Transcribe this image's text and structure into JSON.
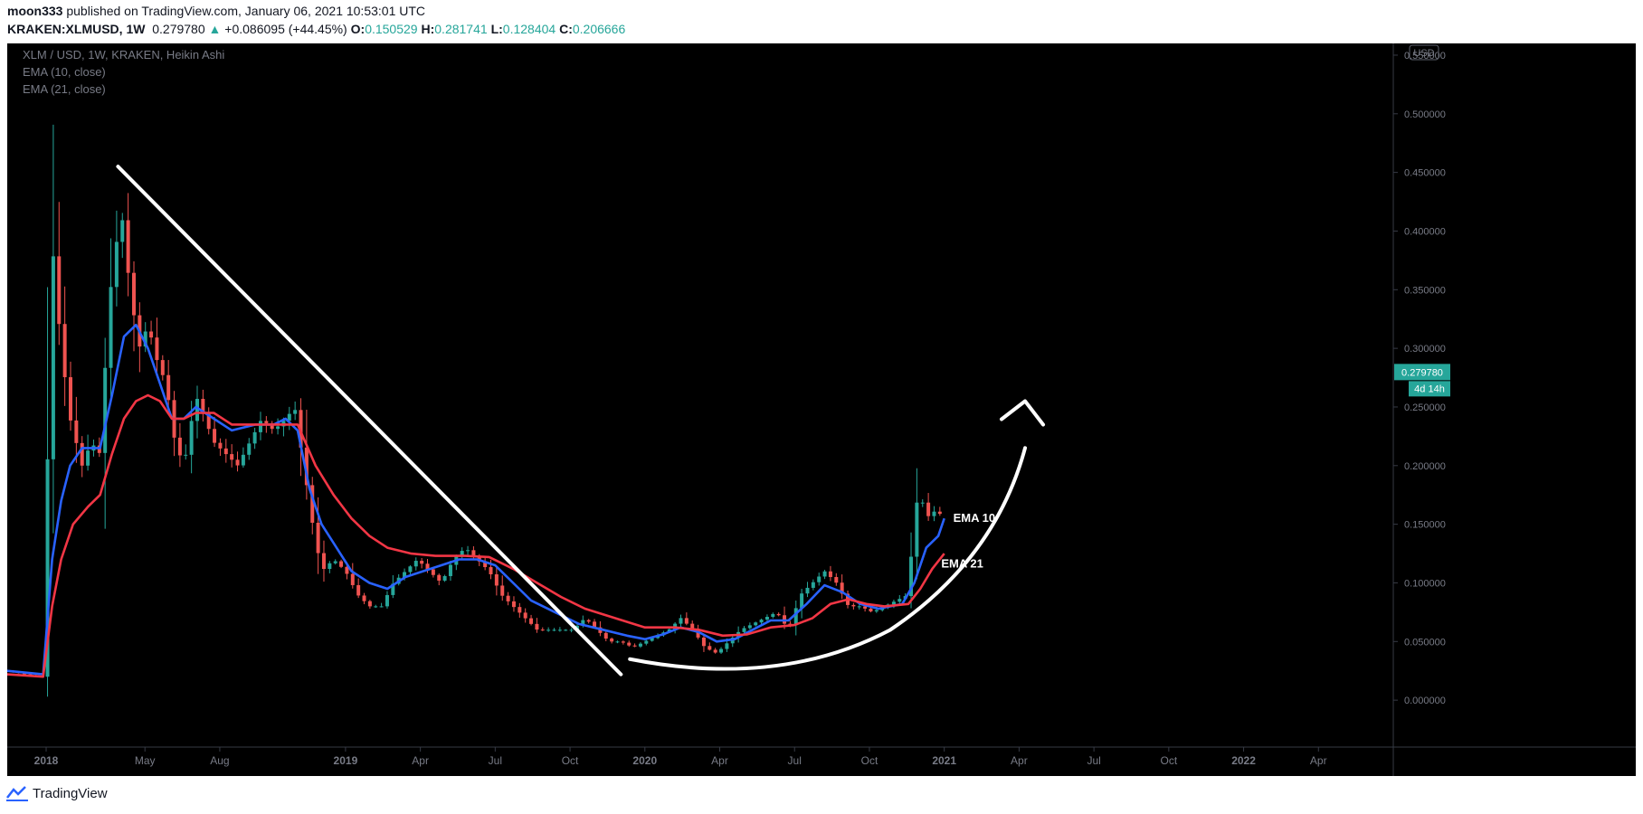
{
  "header": {
    "author": "moon333",
    "published": "published on TradingView.com, January 06, 2021 10:53:01 UTC",
    "symbol": "KRAKEN:XLMUSD, 1W",
    "last": "0.279780",
    "change": "+0.086095 (+44.45%)",
    "o_label": "O:",
    "o_value": "0.150529",
    "h_label": "H:",
    "h_value": "0.281741",
    "l_label": "L:",
    "l_value": "0.128404",
    "c_label": "C:",
    "c_value": "0.206666"
  },
  "legend": {
    "title": "XLM / USD, 1W, KRAKEN, Heikin Ashi",
    "ema10": "EMA (10, close)",
    "ema21": "EMA (21, close)"
  },
  "footer": {
    "brand": "TradingView"
  },
  "chart_data": {
    "type": "candlestick",
    "currency": "USD",
    "price_badge": "0.279780",
    "countdown_badge": "4d 14h",
    "y_ticks": [
      "0.550000",
      "0.500000",
      "0.450000",
      "0.400000",
      "0.350000",
      "0.300000",
      "0.250000",
      "0.200000",
      "0.150000",
      "0.100000",
      "0.050000",
      "0.000000"
    ],
    "ylim": [
      -0.04,
      0.56
    ],
    "x_ticks": [
      {
        "label": "2018",
        "x": 2018.0,
        "bold": true
      },
      {
        "label": "May",
        "x": 2018.33
      },
      {
        "label": "Aug",
        "x": 2018.58
      },
      {
        "label": "2019",
        "x": 2019.0,
        "bold": true
      },
      {
        "label": "Apr",
        "x": 2019.25
      },
      {
        "label": "Jul",
        "x": 2019.5
      },
      {
        "label": "Oct",
        "x": 2019.75
      },
      {
        "label": "2020",
        "x": 2020.0,
        "bold": true
      },
      {
        "label": "Apr",
        "x": 2020.25
      },
      {
        "label": "Jul",
        "x": 2020.5
      },
      {
        "label": "Oct",
        "x": 2020.75
      },
      {
        "label": "2021",
        "x": 2021.0,
        "bold": true
      },
      {
        "label": "Apr",
        "x": 2021.25
      },
      {
        "label": "Jul",
        "x": 2021.5
      },
      {
        "label": "Oct",
        "x": 2021.75
      },
      {
        "label": "2022",
        "x": 2022.0,
        "bold": true
      },
      {
        "label": "Apr",
        "x": 2022.25
      }
    ],
    "xlim": [
      2017.87,
      2022.5
    ],
    "close_path": [
      [
        2017.87,
        0.025
      ],
      [
        2017.97,
        0.02
      ],
      [
        2017.995,
        0.02
      ],
      [
        2018.0,
        0.15
      ],
      [
        2018.02,
        0.39
      ],
      [
        2018.05,
        0.3
      ],
      [
        2018.08,
        0.24
      ],
      [
        2018.12,
        0.2
      ],
      [
        2018.15,
        0.22
      ],
      [
        2018.18,
        0.21
      ],
      [
        2018.21,
        0.34
      ],
      [
        2018.25,
        0.42
      ],
      [
        2018.28,
        0.35
      ],
      [
        2018.31,
        0.3
      ],
      [
        2018.34,
        0.32
      ],
      [
        2018.37,
        0.29
      ],
      [
        2018.4,
        0.27
      ],
      [
        2018.43,
        0.22
      ],
      [
        2018.46,
        0.2
      ],
      [
        2018.5,
        0.26
      ],
      [
        2018.53,
        0.24
      ],
      [
        2018.56,
        0.22
      ],
      [
        2018.6,
        0.21
      ],
      [
        2018.64,
        0.2
      ],
      [
        2018.68,
        0.22
      ],
      [
        2018.72,
        0.24
      ],
      [
        2018.76,
        0.23
      ],
      [
        2018.8,
        0.24
      ],
      [
        2018.83,
        0.25
      ],
      [
        2018.86,
        0.2
      ],
      [
        2018.89,
        0.15
      ],
      [
        2018.92,
        0.11
      ],
      [
        2018.96,
        0.12
      ],
      [
        2019.0,
        0.11
      ],
      [
        2019.04,
        0.09
      ],
      [
        2019.08,
        0.08
      ],
      [
        2019.12,
        0.08
      ],
      [
        2019.16,
        0.1
      ],
      [
        2019.2,
        0.11
      ],
      [
        2019.24,
        0.12
      ],
      [
        2019.28,
        0.11
      ],
      [
        2019.32,
        0.1
      ],
      [
        2019.36,
        0.12
      ],
      [
        2019.4,
        0.13
      ],
      [
        2019.44,
        0.12
      ],
      [
        2019.48,
        0.11
      ],
      [
        2019.52,
        0.09
      ],
      [
        2019.56,
        0.08
      ],
      [
        2019.6,
        0.07
      ],
      [
        2019.64,
        0.06
      ],
      [
        2019.68,
        0.06
      ],
      [
        2019.72,
        0.06
      ],
      [
        2019.76,
        0.06
      ],
      [
        2019.8,
        0.07
      ],
      [
        2019.84,
        0.06
      ],
      [
        2019.88,
        0.05
      ],
      [
        2019.92,
        0.05
      ],
      [
        2019.96,
        0.045
      ],
      [
        2020.0,
        0.05
      ],
      [
        2020.04,
        0.055
      ],
      [
        2020.08,
        0.06
      ],
      [
        2020.12,
        0.07
      ],
      [
        2020.16,
        0.06
      ],
      [
        2020.2,
        0.045
      ],
      [
        2020.24,
        0.04
      ],
      [
        2020.28,
        0.05
      ],
      [
        2020.32,
        0.06
      ],
      [
        2020.36,
        0.065
      ],
      [
        2020.4,
        0.07
      ],
      [
        2020.44,
        0.075
      ],
      [
        2020.48,
        0.06
      ],
      [
        2020.52,
        0.09
      ],
      [
        2020.56,
        0.1
      ],
      [
        2020.6,
        0.11
      ],
      [
        2020.64,
        0.1
      ],
      [
        2020.68,
        0.08
      ],
      [
        2020.72,
        0.08
      ],
      [
        2020.76,
        0.075
      ],
      [
        2020.8,
        0.08
      ],
      [
        2020.84,
        0.085
      ],
      [
        2020.88,
        0.09
      ],
      [
        2020.9,
        0.16
      ],
      [
        2020.92,
        0.18
      ],
      [
        2020.94,
        0.15
      ],
      [
        2020.96,
        0.17
      ],
      [
        2020.98,
        0.14
      ],
      [
        2021.0,
        0.21
      ]
    ],
    "series": [
      {
        "name": "EMA 10",
        "color": "#2962ff",
        "points": [
          [
            2017.87,
            0.025
          ],
          [
            2017.99,
            0.022
          ],
          [
            2018.02,
            0.12
          ],
          [
            2018.05,
            0.17
          ],
          [
            2018.08,
            0.2
          ],
          [
            2018.12,
            0.215
          ],
          [
            2018.18,
            0.215
          ],
          [
            2018.22,
            0.26
          ],
          [
            2018.26,
            0.31
          ],
          [
            2018.3,
            0.32
          ],
          [
            2018.34,
            0.3
          ],
          [
            2018.38,
            0.27
          ],
          [
            2018.42,
            0.24
          ],
          [
            2018.46,
            0.24
          ],
          [
            2018.5,
            0.25
          ],
          [
            2018.56,
            0.24
          ],
          [
            2018.62,
            0.23
          ],
          [
            2018.7,
            0.235
          ],
          [
            2018.76,
            0.235
          ],
          [
            2018.8,
            0.24
          ],
          [
            2018.84,
            0.23
          ],
          [
            2018.88,
            0.18
          ],
          [
            2018.92,
            0.15
          ],
          [
            2018.97,
            0.13
          ],
          [
            2019.02,
            0.11
          ],
          [
            2019.08,
            0.1
          ],
          [
            2019.14,
            0.095
          ],
          [
            2019.2,
            0.105
          ],
          [
            2019.26,
            0.11
          ],
          [
            2019.32,
            0.115
          ],
          [
            2019.38,
            0.12
          ],
          [
            2019.44,
            0.12
          ],
          [
            2019.5,
            0.115
          ],
          [
            2019.56,
            0.1
          ],
          [
            2019.62,
            0.085
          ],
          [
            2019.7,
            0.075
          ],
          [
            2019.78,
            0.065
          ],
          [
            2019.86,
            0.06
          ],
          [
            2019.94,
            0.055
          ],
          [
            2020.0,
            0.052
          ],
          [
            2020.06,
            0.056
          ],
          [
            2020.12,
            0.062
          ],
          [
            2020.18,
            0.058
          ],
          [
            2020.24,
            0.05
          ],
          [
            2020.3,
            0.052
          ],
          [
            2020.36,
            0.06
          ],
          [
            2020.42,
            0.068
          ],
          [
            2020.48,
            0.068
          ],
          [
            2020.54,
            0.082
          ],
          [
            2020.6,
            0.098
          ],
          [
            2020.66,
            0.092
          ],
          [
            2020.72,
            0.082
          ],
          [
            2020.78,
            0.078
          ],
          [
            2020.86,
            0.082
          ],
          [
            2020.9,
            0.1
          ],
          [
            2020.94,
            0.13
          ],
          [
            2020.98,
            0.14
          ],
          [
            2021.0,
            0.155
          ]
        ]
      },
      {
        "name": "EMA 21",
        "color": "#f23645",
        "points": [
          [
            2017.87,
            0.022
          ],
          [
            2017.99,
            0.02
          ],
          [
            2018.02,
            0.08
          ],
          [
            2018.05,
            0.12
          ],
          [
            2018.09,
            0.15
          ],
          [
            2018.14,
            0.165
          ],
          [
            2018.18,
            0.175
          ],
          [
            2018.22,
            0.21
          ],
          [
            2018.26,
            0.24
          ],
          [
            2018.3,
            0.255
          ],
          [
            2018.34,
            0.26
          ],
          [
            2018.38,
            0.255
          ],
          [
            2018.42,
            0.24
          ],
          [
            2018.46,
            0.24
          ],
          [
            2018.5,
            0.245
          ],
          [
            2018.56,
            0.245
          ],
          [
            2018.62,
            0.235
          ],
          [
            2018.7,
            0.235
          ],
          [
            2018.78,
            0.235
          ],
          [
            2018.84,
            0.235
          ],
          [
            2018.9,
            0.2
          ],
          [
            2018.96,
            0.175
          ],
          [
            2019.02,
            0.155
          ],
          [
            2019.08,
            0.14
          ],
          [
            2019.14,
            0.13
          ],
          [
            2019.22,
            0.125
          ],
          [
            2019.3,
            0.123
          ],
          [
            2019.4,
            0.123
          ],
          [
            2019.48,
            0.122
          ],
          [
            2019.56,
            0.112
          ],
          [
            2019.64,
            0.1
          ],
          [
            2019.72,
            0.088
          ],
          [
            2019.8,
            0.078
          ],
          [
            2019.9,
            0.07
          ],
          [
            2020.0,
            0.062
          ],
          [
            2020.1,
            0.062
          ],
          [
            2020.18,
            0.06
          ],
          [
            2020.26,
            0.055
          ],
          [
            2020.34,
            0.056
          ],
          [
            2020.42,
            0.062
          ],
          [
            2020.5,
            0.064
          ],
          [
            2020.56,
            0.07
          ],
          [
            2020.62,
            0.082
          ],
          [
            2020.68,
            0.086
          ],
          [
            2020.74,
            0.082
          ],
          [
            2020.8,
            0.08
          ],
          [
            2020.88,
            0.082
          ],
          [
            2020.92,
            0.095
          ],
          [
            2020.96,
            0.112
          ],
          [
            2021.0,
            0.125
          ]
        ]
      }
    ],
    "annotations": [
      {
        "type": "text",
        "text": "EMA 10",
        "x": 2021.03,
        "y": 0.155
      },
      {
        "type": "text",
        "text": "EMA 21",
        "x": 2020.99,
        "y": 0.116
      }
    ]
  }
}
